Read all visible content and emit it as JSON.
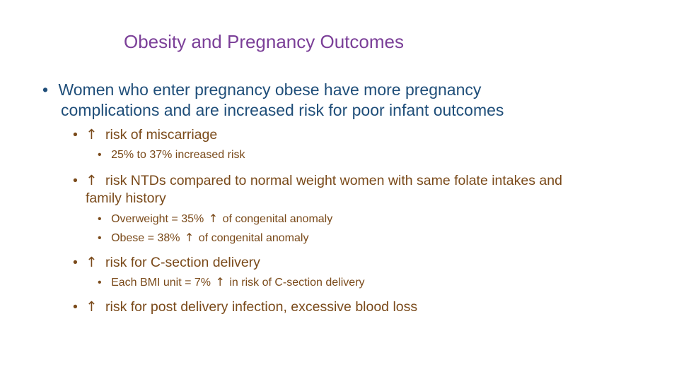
{
  "slide": {
    "title": "Obesity and Pregnancy Outcomes",
    "bullet_char": "•",
    "arrow_char": "↑",
    "level1": {
      "line1": "Women who enter pregnancy obese have more pregnancy",
      "line2": "complications and are increased risk for poor infant outcomes"
    },
    "items": [
      {
        "text": "risk of miscarriage",
        "subs": [
          "25% to 37% increased risk"
        ]
      },
      {
        "text_line1": "risk NTDs compared to normal weight women with same folate intakes and",
        "text_line2": "family history",
        "subs": [
          {
            "before": "Overweight = 35%",
            "after": "of congenital anomaly"
          },
          {
            "before": "Obese = 38%",
            "after": "of congenital anomaly"
          }
        ]
      },
      {
        "text": "risk for C-section delivery",
        "subs": [
          {
            "before": "Each BMI unit = 7%",
            "after": "in risk of C-section delivery"
          }
        ]
      },
      {
        "text": "risk for post delivery infection, excessive blood loss"
      }
    ]
  }
}
